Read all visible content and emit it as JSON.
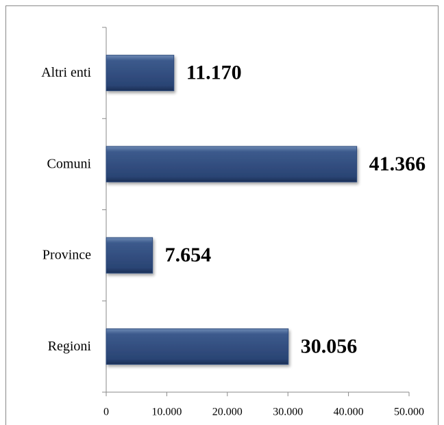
{
  "chart_data": {
    "type": "bar",
    "orientation": "horizontal",
    "categories": [
      "Regioni",
      "Province",
      "Comuni",
      "Altri enti"
    ],
    "values": [
      30056,
      7654,
      41366,
      11170
    ],
    "value_labels": [
      "30.056",
      "7.654",
      "41.366",
      "11.170"
    ],
    "color": "#2f4b7c",
    "xlim": [
      0,
      50000
    ],
    "xticks": [
      0,
      {
        "value": 10000,
        "label": "10.000"
      },
      {
        "value": 20000,
        "label": "20.000"
      },
      {
        "value": 30000,
        "label": "30.000"
      },
      {
        "value": 40000,
        "label": "40.000"
      },
      {
        "value": 50000,
        "label": "50.000"
      }
    ]
  }
}
